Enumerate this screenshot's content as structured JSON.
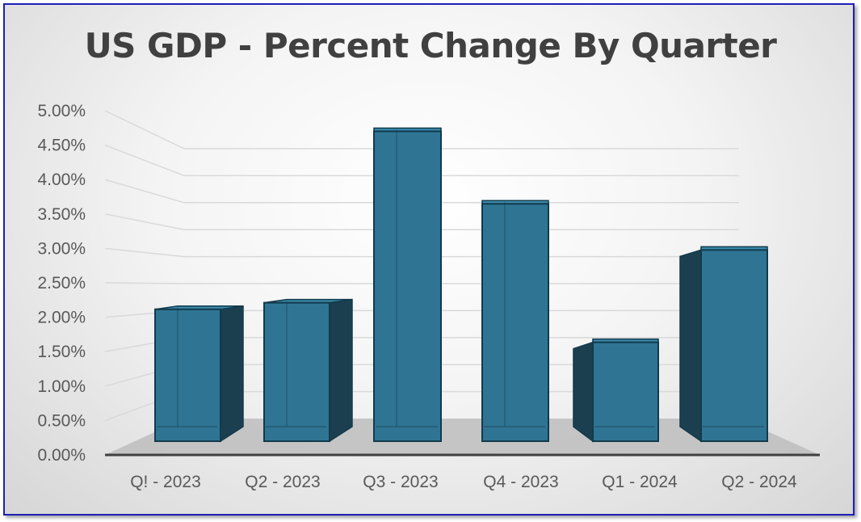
{
  "chart_data": {
    "type": "bar",
    "title": "US GDP - Percent Change By Quarter",
    "categories": [
      "Q! - 2023",
      "Q2 - 2023",
      "Q3 - 2023",
      "Q4 - 2023",
      "Q1 - 2024",
      "Q2 - 2024"
    ],
    "values": [
      2.0,
      2.1,
      4.7,
      3.6,
      1.5,
      2.9
    ],
    "ylim": [
      0,
      5
    ],
    "yticks": [
      "0.00%",
      "0.50%",
      "1.00%",
      "1.50%",
      "2.00%",
      "2.50%",
      "3.00%",
      "3.50%",
      "4.00%",
      "4.50%",
      "5.00%"
    ],
    "xlabel": "",
    "ylabel": "",
    "grid": true,
    "legend": "none",
    "style": "3d-column"
  },
  "colors": {
    "bar_front": "#2f7593",
    "bar_side_dark": "#1c3f50",
    "bar_top": "#3a8aab",
    "bar_edge": "#123a4c",
    "floor": "#bdbdbd",
    "gridline": "#d9d9d9",
    "axis": "#404040"
  }
}
